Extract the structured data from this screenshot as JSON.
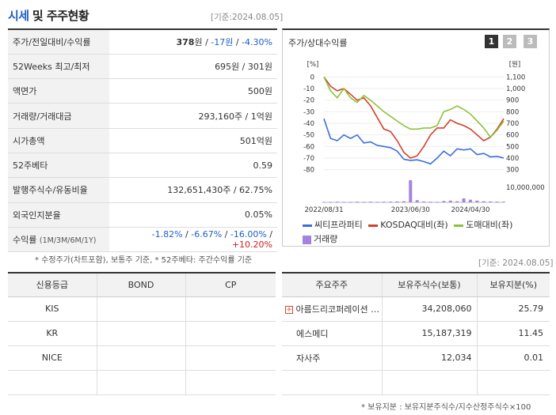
{
  "header": {
    "title_part1": "시세",
    "title_part2": "및 주주현황",
    "base_date": "[기준:2024.08.05]"
  },
  "info_rows": [
    {
      "label": "주가/전일대비/수익률",
      "price": "378",
      "price_unit": "원",
      "change": "-17원",
      "rate": "-4.30%"
    },
    {
      "label": "52Weeks 최고/최저",
      "value": "695원 / 301원"
    },
    {
      "label": "액면가",
      "value": "500원"
    },
    {
      "label": "거래량/거래대금",
      "value": "293,160주 / 1억원"
    },
    {
      "label": "시가총액",
      "value": "501억원"
    },
    {
      "label": "52주베타",
      "value": "0.59"
    },
    {
      "label": "발행주식수/유동비율",
      "value": "132,651,430주 / 62.75%"
    },
    {
      "label": "외국인지분율",
      "value": "0.05%"
    },
    {
      "label": "수익률",
      "label_sub": "(1M/3M/6M/1Y)",
      "r1": "-1.82%",
      "r2": "-6.67%",
      "r3": "-16.00%",
      "r4": "+10.20%"
    }
  ],
  "info_note": "* 수정주가(차트포함), 보통주 기준, * 52주베타: 주간수익률 기준",
  "chart_panel": {
    "title": "주가/상대수익률",
    "tabs": [
      "1",
      "2",
      "3"
    ],
    "active_tab": "1",
    "left_unit": "[%]",
    "right_unit": "[원]",
    "volume_label": "10,000,000",
    "legend": [
      {
        "name": "씨티프라퍼티",
        "color": "#3a6fd8"
      },
      {
        "name": "KOSDAQ대비(좌)",
        "color": "#d3402a"
      },
      {
        "name": "도매대비(좌)",
        "color": "#8ec23a"
      },
      {
        "name": "거래량",
        "color": "#a383e0"
      }
    ]
  },
  "chart_data": {
    "type": "line",
    "x_ticks": [
      "2022/08/31",
      "2023/06/30",
      "2024/04/30"
    ],
    "left_axis": {
      "ticks": [
        0,
        -10,
        -20,
        -30,
        -40,
        -50,
        -60,
        -70,
        -80
      ],
      "ylim": [
        -85,
        5
      ]
    },
    "right_axis": {
      "ticks": [
        "1,100",
        "1,000",
        "900",
        "800",
        "700",
        "600",
        "500",
        "400",
        "300"
      ],
      "ylim": [
        250,
        1150
      ]
    },
    "series": [
      {
        "name": "씨티프라퍼티",
        "axis": "right",
        "values": [
          740,
          570,
          550,
          600,
          570,
          600,
          530,
          540,
          510,
          500,
          490,
          460,
          390,
          380,
          385,
          370,
          350,
          400,
          460,
          420,
          480,
          470,
          480,
          430,
          440,
          410,
          415,
          400
        ]
      },
      {
        "name": "KOSDAQ대비(좌)",
        "axis": "left",
        "values": [
          0,
          -8,
          -12,
          -10,
          -15,
          -20,
          -18,
          -25,
          -35,
          -45,
          -47,
          -55,
          -65,
          -70,
          -68,
          -60,
          -50,
          -44,
          -44,
          -37,
          -40,
          -42,
          -45,
          -50,
          -55,
          -52,
          -45,
          -36
        ]
      },
      {
        "name": "도매대비(좌)",
        "axis": "left",
        "values": [
          0,
          -12,
          -18,
          -10,
          -18,
          -22,
          -16,
          -20,
          -25,
          -30,
          -34,
          -38,
          -42,
          -45,
          -45,
          -44,
          -44,
          -42,
          -30,
          -28,
          -25,
          -28,
          -32,
          -38,
          -44,
          -52,
          -46,
          -38
        ]
      }
    ],
    "volume": [
      0.02,
      0.02,
      0.03,
      0.02,
      0.02,
      0.03,
      0.02,
      0.03,
      0.02,
      0.03,
      0.03,
      0.04,
      0.05,
      1.0,
      0.1,
      0.04,
      0.03,
      0.02,
      0.06,
      0.08,
      0.05,
      0.18,
      0.12,
      0.08,
      0.05,
      0.04,
      0.03,
      0.03
    ]
  },
  "bottom_base_date": "[기준: 2024.08.05]",
  "credit_table": {
    "headers": [
      "신용등급",
      "BOND",
      "CP"
    ],
    "rows": [
      [
        "KIS",
        "",
        ""
      ],
      [
        "KR",
        "",
        ""
      ],
      [
        "NICE",
        "",
        ""
      ],
      [
        "",
        "",
        ""
      ]
    ]
  },
  "holders_table": {
    "headers": [
      "주요주주",
      "보유주식수(보통)",
      "보유지분(%)"
    ],
    "rows": [
      [
        "아름드리코퍼레이션 …",
        "34,208,060",
        "25.79"
      ],
      [
        "에스메디",
        "15,187,319",
        "11.45"
      ],
      [
        "자사주",
        "12,034",
        "0.01"
      ],
      [
        "",
        "",
        ""
      ]
    ]
  },
  "holders_note": "* 보유지분 : 보유지분주식수/지수산정주식수×100"
}
